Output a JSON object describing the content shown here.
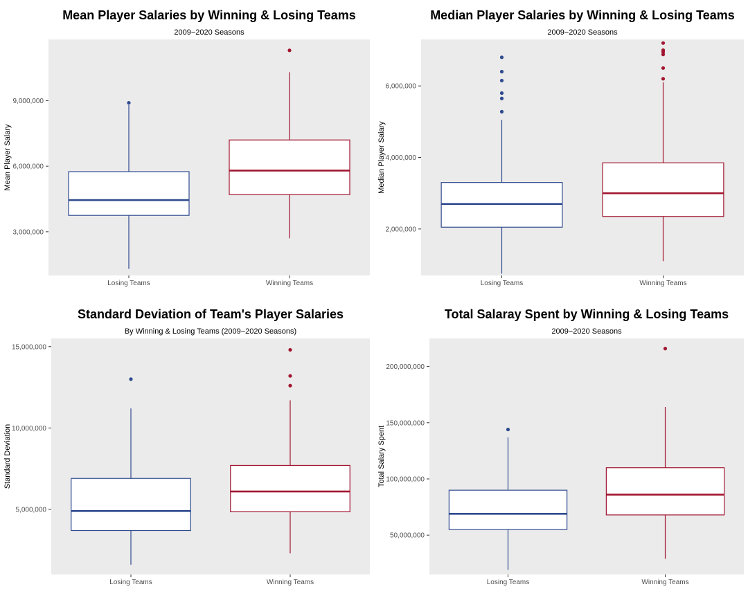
{
  "chart_data": [
    {
      "type": "box",
      "title": "Mean Player Salaries by Winning & Losing Teams",
      "subtitle": "2009−2020 Seasons",
      "xlabel": "",
      "ylabel": "Mean Player Salary",
      "ylim": [
        1000000,
        11800000
      ],
      "yticks": [
        3000000,
        6000000,
        9000000
      ],
      "ytick_labels": [
        "3,000,000",
        "6,000,000",
        "9,000,000"
      ],
      "grid": false,
      "categories": [
        "Losing Teams",
        "Winning Teams"
      ],
      "series": [
        {
          "category": "Losing Teams",
          "color": "#2f4a8f",
          "whisker_low": 1300000,
          "q1": 3750000,
          "median": 4450000,
          "q3": 5750000,
          "whisker_high": 8800000,
          "outliers": [
            8900000
          ]
        },
        {
          "category": "Winning Teams",
          "color": "#a11530",
          "whisker_low": 2700000,
          "q1": 4700000,
          "median": 5800000,
          "q3": 7200000,
          "whisker_high": 10300000,
          "outliers": [
            11300000
          ]
        }
      ]
    },
    {
      "type": "box",
      "title": "Median Player Salaries by Winning & Losing Teams",
      "subtitle": "2009−2020 Seasons",
      "xlabel": "",
      "ylabel": "Median Player Salary",
      "ylim": [
        700000,
        7300000
      ],
      "yticks": [
        2000000,
        4000000,
        6000000
      ],
      "ytick_labels": [
        "2,000,000",
        "4,000,000",
        "6,000,000"
      ],
      "grid": false,
      "categories": [
        "Losing Teams",
        "Winning Teams"
      ],
      "series": [
        {
          "category": "Losing Teams",
          "color": "#2f4a8f",
          "whisker_low": 750000,
          "q1": 2050000,
          "median": 2700000,
          "q3": 3300000,
          "whisker_high": 5050000,
          "outliers": [
            5280000,
            5650000,
            5800000,
            6150000,
            6400000,
            6800000
          ]
        },
        {
          "category": "Winning Teams",
          "color": "#a11530",
          "whisker_low": 1100000,
          "q1": 2350000,
          "median": 3000000,
          "q3": 3850000,
          "whisker_high": 6100000,
          "outliers": [
            6200000,
            6500000,
            6880000,
            6950000,
            7000000,
            7200000
          ]
        }
      ]
    },
    {
      "type": "box",
      "title": "Standard Deviation of Team's Player Salaries",
      "subtitle": "By Winning & Losing Teams (2009−2020 Seasons)",
      "xlabel": "",
      "ylabel": "Standard Deviation",
      "ylim": [
        1000000,
        15500000
      ],
      "yticks": [
        5000000,
        10000000,
        15000000
      ],
      "ytick_labels": [
        "5,000,000",
        "10,000,000",
        "15,000,000"
      ],
      "grid": false,
      "categories": [
        "Losing Teams",
        "Winning Teams"
      ],
      "series": [
        {
          "category": "Losing Teams",
          "color": "#2f4a8f",
          "whisker_low": 1600000,
          "q1": 3700000,
          "median": 4900000,
          "q3": 6900000,
          "whisker_high": 11200000,
          "outliers": [
            13000000
          ]
        },
        {
          "category": "Winning Teams",
          "color": "#a11530",
          "whisker_low": 2300000,
          "q1": 4850000,
          "median": 6100000,
          "q3": 7700000,
          "whisker_high": 11700000,
          "outliers": [
            12600000,
            13200000,
            14800000
          ]
        }
      ]
    },
    {
      "type": "box",
      "title": "Total Salaray Spent by Winning & Losing Teams",
      "subtitle": "2009−2020 Seasons",
      "xlabel": "",
      "ylabel": "Total Salary Spent",
      "ylim": [
        15000000,
        225000000
      ],
      "yticks": [
        50000000,
        100000000,
        150000000,
        200000000
      ],
      "ytick_labels": [
        "50,000,000",
        "100,000,000",
        "150,000,000",
        "200,000,000"
      ],
      "grid": false,
      "categories": [
        "Losing Teams",
        "Winning Teams"
      ],
      "series": [
        {
          "category": "Losing Teams",
          "color": "#2f4a8f",
          "whisker_low": 19000000,
          "q1": 55000000,
          "median": 69000000,
          "q3": 90000000,
          "whisker_high": 137000000,
          "outliers": [
            144000000
          ]
        },
        {
          "category": "Winning Teams",
          "color": "#a11530",
          "whisker_low": 29000000,
          "q1": 68000000,
          "median": 86000000,
          "q3": 110000000,
          "whisker_high": 164000000,
          "outliers": [
            216000000
          ]
        }
      ]
    }
  ]
}
